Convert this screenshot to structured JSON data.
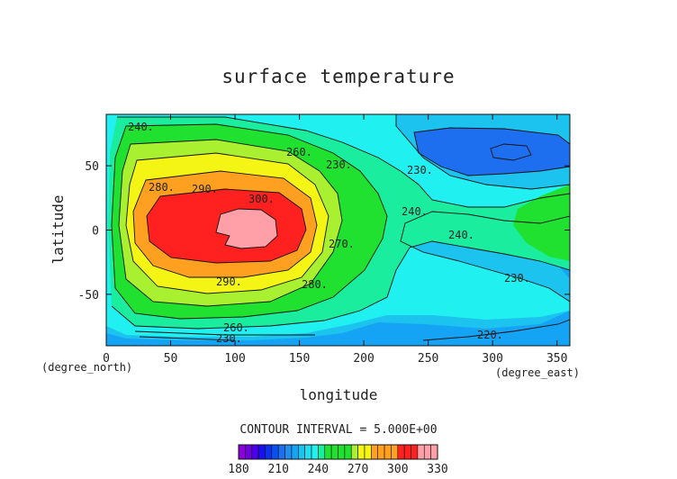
{
  "chart_data": {
    "type": "heatmap",
    "title": "surface temperature",
    "xlabel": "longitude",
    "ylabel": "latitude",
    "x_unit_left": "(degree_north)",
    "x_unit_right": "(degree_east)",
    "xlim": [
      0,
      360
    ],
    "ylim": [
      -90,
      90
    ],
    "x_ticks": [
      0,
      50,
      100,
      150,
      200,
      250,
      300,
      350
    ],
    "y_ticks": [
      -50,
      0,
      50
    ],
    "contour_labels": [
      "240.",
      "260.",
      "230.",
      "230.",
      "280.",
      "290.",
      "300.",
      "240.",
      "240.",
      "270.",
      "280.",
      "290.",
      "230.",
      "220.",
      "260.",
      "230."
    ],
    "contour_interval": "CONTOUR INTERVAL = 5.000E+00",
    "colorbar": {
      "levels": [
        180,
        185,
        190,
        195,
        200,
        205,
        210,
        215,
        220,
        225,
        230,
        235,
        240,
        245,
        250,
        255,
        260,
        265,
        270,
        275,
        280,
        285,
        290,
        295,
        300,
        305,
        310,
        315,
        320,
        325,
        330
      ],
      "tick_labels": [
        "180",
        "210",
        "240",
        "270",
        "300",
        "330"
      ],
      "colors": [
        "#8a00d8",
        "#7000e0",
        "#4a00e8",
        "#1a10ee",
        "#0a30f0",
        "#0a50f0",
        "#1d6ff0",
        "#1d8ff0",
        "#14a3f5",
        "#1cc3ee",
        "#20e0f0",
        "#20f0f0",
        "#1aee9e",
        "#20e030",
        "#20e030",
        "#20e030",
        "#20e030",
        "#a8f030",
        "#f5f515",
        "#f5f515",
        "#ffa020",
        "#ffa020",
        "#ffa020",
        "#ffa020",
        "#ff2020",
        "#ff2020",
        "#ff2020",
        "#ffa0a8",
        "#ffa0a8",
        "#ffa0a8"
      ]
    },
    "grid": false
  }
}
